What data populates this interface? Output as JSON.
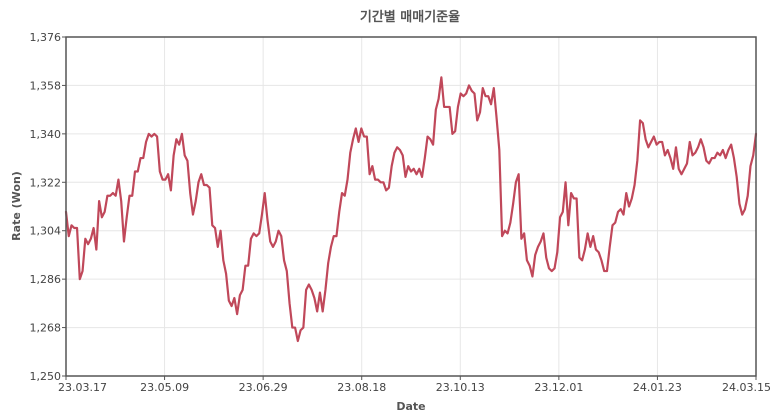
{
  "chart_data": {
    "type": "line",
    "title": "기간별 매매기준율",
    "xlabel": "Date",
    "ylabel": "Rate (Won)",
    "ylim": [
      1250,
      1376
    ],
    "yticks": [
      "1,250",
      "1,268",
      "1,286",
      "1,304",
      "1,322",
      "1,340",
      "1,358",
      "1,376"
    ],
    "xticks": [
      "23.03.17",
      "23.05.09",
      "23.06.29",
      "23.08.18",
      "23.10.13",
      "23.12.01",
      "24.01.23",
      "24.03.15"
    ],
    "grid": true,
    "line_color": "#c0485a",
    "series": [
      {
        "values": [
          1311,
          1302,
          1306,
          1305,
          1305,
          1286,
          1289,
          1301,
          1299,
          1301,
          1305,
          1297,
          1315,
          1309,
          1311,
          1317,
          1317,
          1318,
          1317,
          1323,
          1315,
          1300,
          1309,
          1317,
          1317,
          1326,
          1326,
          1331,
          1331,
          1337,
          1340,
          1339,
          1340,
          1339,
          1326,
          1323,
          1323,
          1325,
          1319,
          1332,
          1338,
          1336,
          1340,
          1332,
          1330,
          1318,
          1310,
          1315,
          1322,
          1325,
          1321,
          1321,
          1320,
          1306,
          1305,
          1298,
          1304,
          1293,
          1288,
          1278,
          1276,
          1279,
          1273,
          1280,
          1282,
          1291,
          1291,
          1301,
          1303,
          1302,
          1303,
          1310,
          1318,
          1308,
          1300,
          1298,
          1300,
          1304,
          1302,
          1293,
          1289,
          1277,
          1268,
          1268,
          1263,
          1267,
          1268,
          1282,
          1284,
          1282,
          1279,
          1274,
          1281,
          1274,
          1282,
          1292,
          1298,
          1302,
          1302,
          1311,
          1318,
          1317,
          1323,
          1333,
          1338,
          1342,
          1337,
          1342,
          1339,
          1339,
          1325,
          1328,
          1323,
          1323,
          1322,
          1322,
          1319,
          1320,
          1328,
          1333,
          1335,
          1334,
          1332,
          1324,
          1328,
          1326,
          1327,
          1325,
          1327,
          1324,
          1331,
          1339,
          1338,
          1336,
          1349,
          1353,
          1361,
          1350,
          1350,
          1350,
          1340,
          1341,
          1350,
          1355,
          1354,
          1355,
          1358,
          1356,
          1355,
          1345,
          1348,
          1357,
          1354,
          1354,
          1351,
          1357,
          1346,
          1334,
          1302,
          1304,
          1303,
          1307,
          1314,
          1322,
          1325,
          1301,
          1303,
          1293,
          1291,
          1287,
          1295,
          1298,
          1300,
          1303,
          1294,
          1290,
          1289,
          1290,
          1296,
          1309,
          1311,
          1322,
          1306,
          1318,
          1316,
          1316,
          1294,
          1293,
          1297,
          1303,
          1298,
          1302,
          1297,
          1296,
          1293,
          1289,
          1289,
          1298,
          1306,
          1307,
          1311,
          1312,
          1310,
          1318,
          1313,
          1316,
          1321,
          1330,
          1345,
          1344,
          1338,
          1335,
          1337,
          1339,
          1336,
          1337,
          1337,
          1332,
          1334,
          1331,
          1327,
          1335,
          1327,
          1325,
          1327,
          1329,
          1337,
          1332,
          1333,
          1335,
          1338,
          1335,
          1330,
          1329,
          1331,
          1331,
          1333,
          1332,
          1334,
          1331,
          1334,
          1336,
          1331,
          1324,
          1314,
          1310,
          1312,
          1317,
          1328,
          1332,
          1340
        ]
      }
    ]
  }
}
